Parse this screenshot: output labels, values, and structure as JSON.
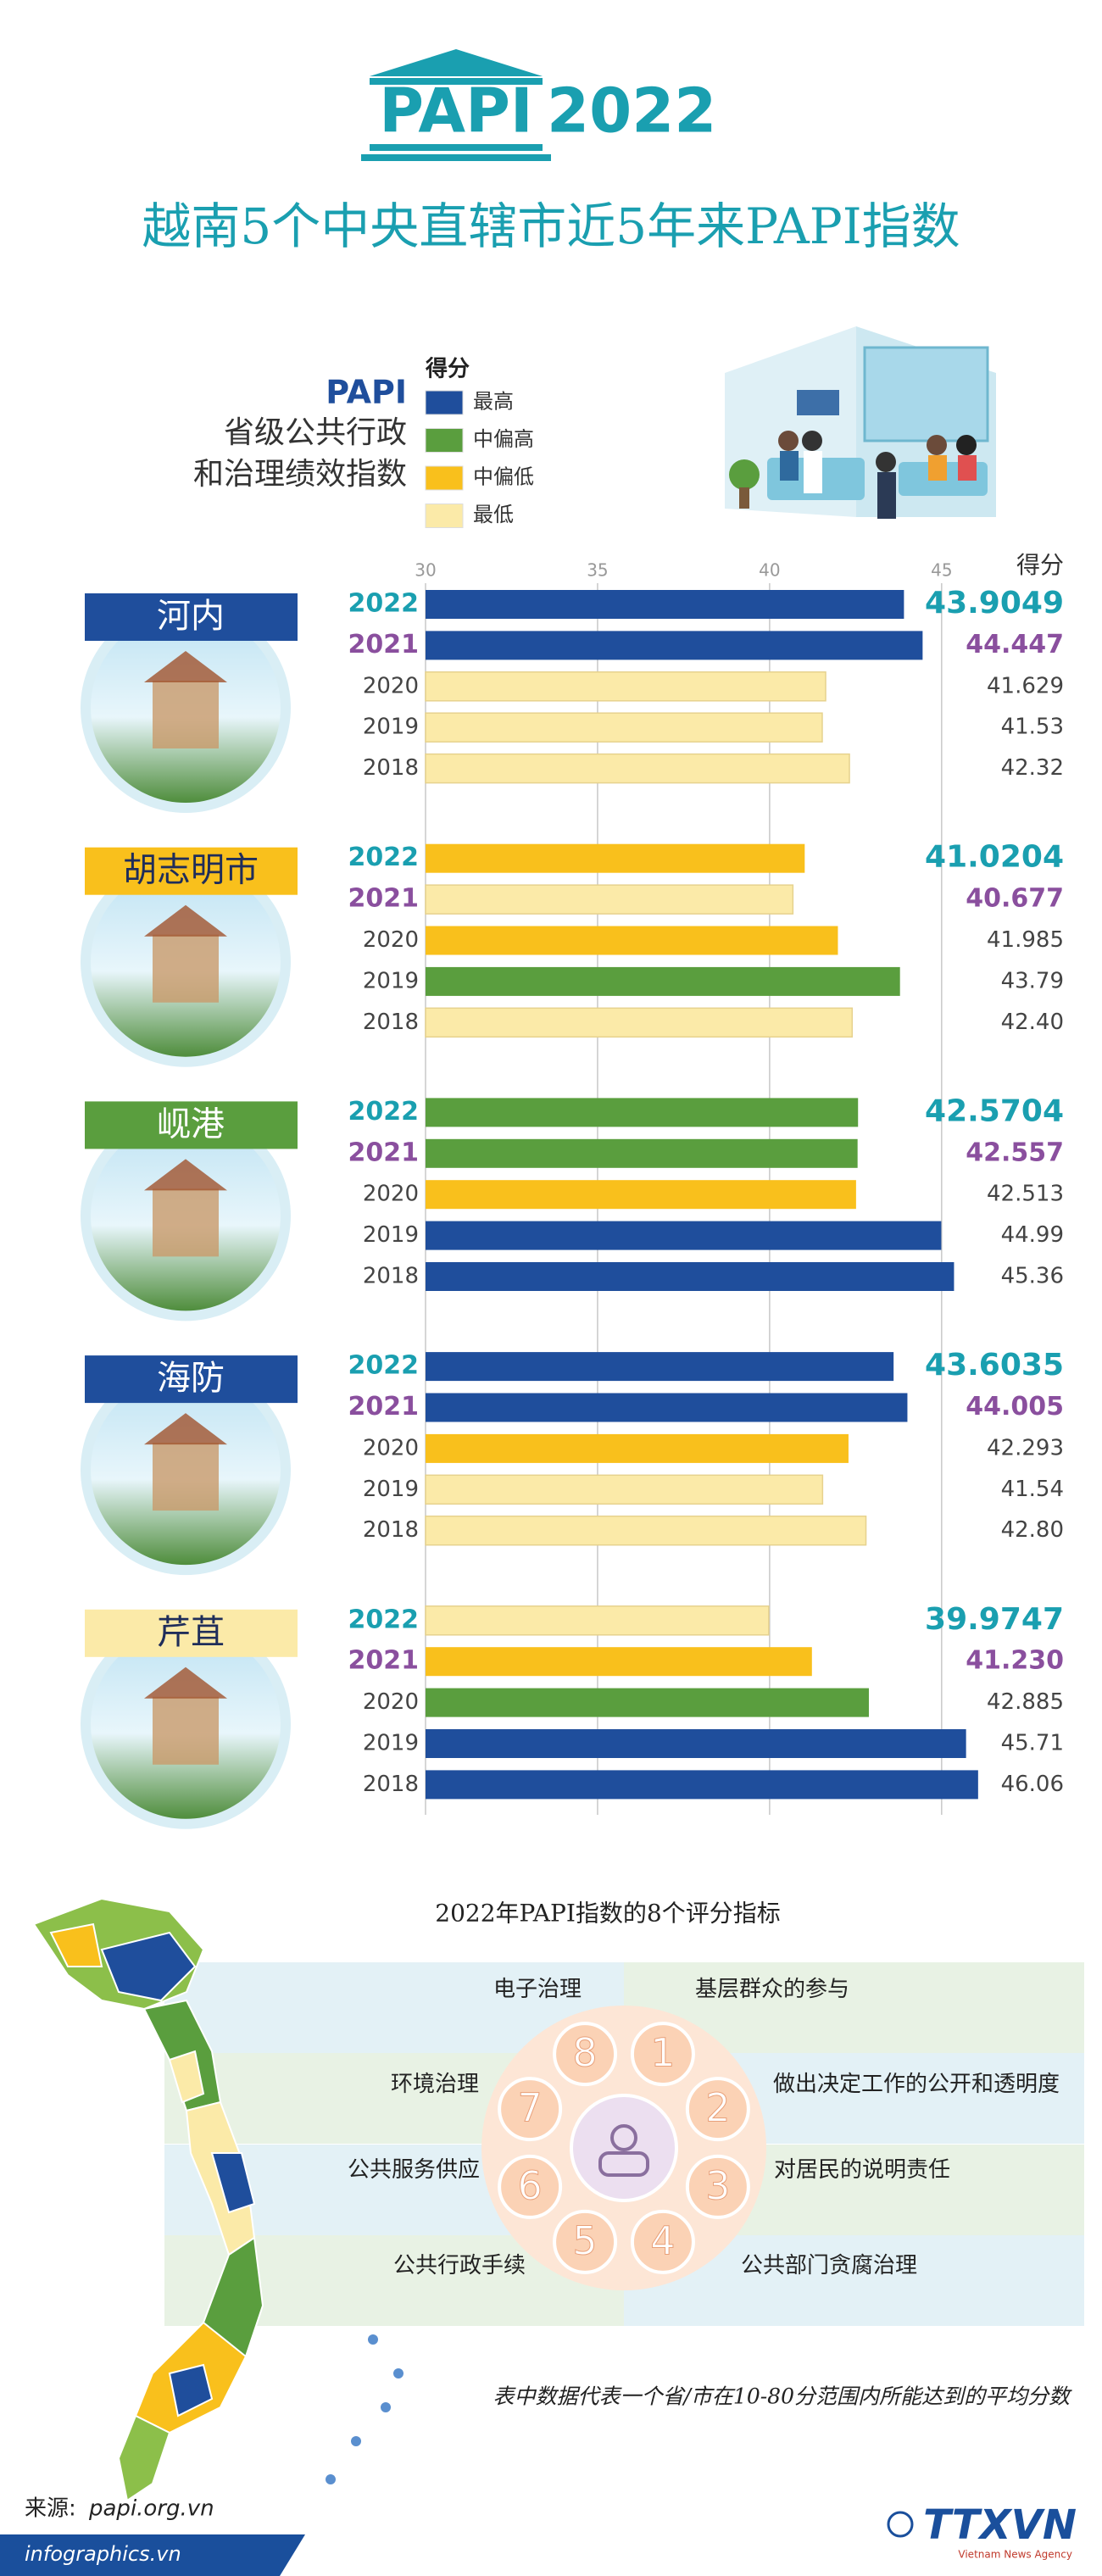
{
  "header": {
    "logo": "PAPI",
    "year": "2022",
    "title": "越南5个中央直辖市近5年来PAPI指数"
  },
  "index_name": {
    "abbr": "PAPI",
    "line1": "省级公共行政",
    "line2": "和治理绩效指数"
  },
  "chart_data": {
    "type": "bar",
    "orientation": "horizontal",
    "value_axis_label": "得分",
    "xlim": [
      30,
      47
    ],
    "xticks": [
      30,
      35,
      40,
      45
    ],
    "grid": true,
    "legend": {
      "title": "得分",
      "items": [
        {
          "name": "最高",
          "color": "#1f4e9c"
        },
        {
          "name": "中偏高",
          "color": "#5a9e3e"
        },
        {
          "name": "中偏低",
          "color": "#f9c01c"
        },
        {
          "name": "最低",
          "color": "#fbeaa8"
        }
      ]
    },
    "groups": [
      {
        "name": "河内",
        "categories": [
          "2022",
          "2021",
          "2020",
          "2019",
          "2018"
        ],
        "values": [
          43.9049,
          44.447,
          41.629,
          41.53,
          42.32
        ],
        "value_labels": [
          "43.9049",
          "44.447",
          "41.629",
          "41.53",
          "42.32"
        ],
        "colors": [
          "#1f4e9c",
          "#1f4e9c",
          "#fbeaa8",
          "#fbeaa8",
          "#fbeaa8"
        ]
      },
      {
        "name": "胡志明市",
        "categories": [
          "2022",
          "2021",
          "2020",
          "2019",
          "2018"
        ],
        "values": [
          41.0204,
          40.677,
          41.985,
          43.79,
          42.4
        ],
        "value_labels": [
          "41.0204",
          "40.677",
          "41.985",
          "43.79",
          "42.40"
        ],
        "colors": [
          "#f9c01c",
          "#fbeaa8",
          "#f9c01c",
          "#5a9e3e",
          "#fbeaa8"
        ]
      },
      {
        "name": "岘港",
        "categories": [
          "2022",
          "2021",
          "2020",
          "2019",
          "2018"
        ],
        "values": [
          42.5704,
          42.557,
          42.513,
          44.99,
          45.36
        ],
        "value_labels": [
          "42.5704",
          "42.557",
          "42.513",
          "44.99",
          "45.36"
        ],
        "colors": [
          "#5a9e3e",
          "#5a9e3e",
          "#f9c01c",
          "#1f4e9c",
          "#1f4e9c"
        ]
      },
      {
        "name": "海防",
        "categories": [
          "2022",
          "2021",
          "2020",
          "2019",
          "2018"
        ],
        "values": [
          43.6035,
          44.005,
          42.293,
          41.54,
          42.8
        ],
        "value_labels": [
          "43.6035",
          "44.005",
          "42.293",
          "41.54",
          "42.80"
        ],
        "colors": [
          "#1f4e9c",
          "#1f4e9c",
          "#f9c01c",
          "#fbeaa8",
          "#fbeaa8"
        ]
      },
      {
        "name": "芹苴",
        "categories": [
          "2022",
          "2021",
          "2020",
          "2019",
          "2018"
        ],
        "values": [
          39.9747,
          41.23,
          42.885,
          45.71,
          46.06
        ],
        "value_labels": [
          "39.9747",
          "41.230",
          "42.885",
          "45.71",
          "46.06"
        ],
        "colors": [
          "#fbeaa8",
          "#f9c01c",
          "#5a9e3e",
          "#1f4e9c",
          "#1f4e9c"
        ]
      }
    ]
  },
  "indicators": {
    "title": "2022年PAPI指数的8个评分指标",
    "items": [
      {
        "number": "1",
        "label": "基层群众的参与"
      },
      {
        "number": "2",
        "label": "做出决定工作的公开和透明度"
      },
      {
        "number": "3",
        "label": "对居民的说明责任"
      },
      {
        "number": "4",
        "label": "公共部门贪腐治理"
      },
      {
        "number": "5",
        "label": "公共行政手续"
      },
      {
        "number": "6",
        "label": "公共服务供应"
      },
      {
        "number": "7",
        "label": "环境治理"
      },
      {
        "number": "8",
        "label": "电子治理"
      }
    ]
  },
  "note": "表中数据代表一个省/市在10-80分范围内所能达到的平均分数",
  "footer": {
    "source_label": "来源:",
    "source": "papi.org.vn",
    "site": "infographics.vn",
    "agency": "TTXVN",
    "agency_sub": "Vietnam News Agency"
  }
}
